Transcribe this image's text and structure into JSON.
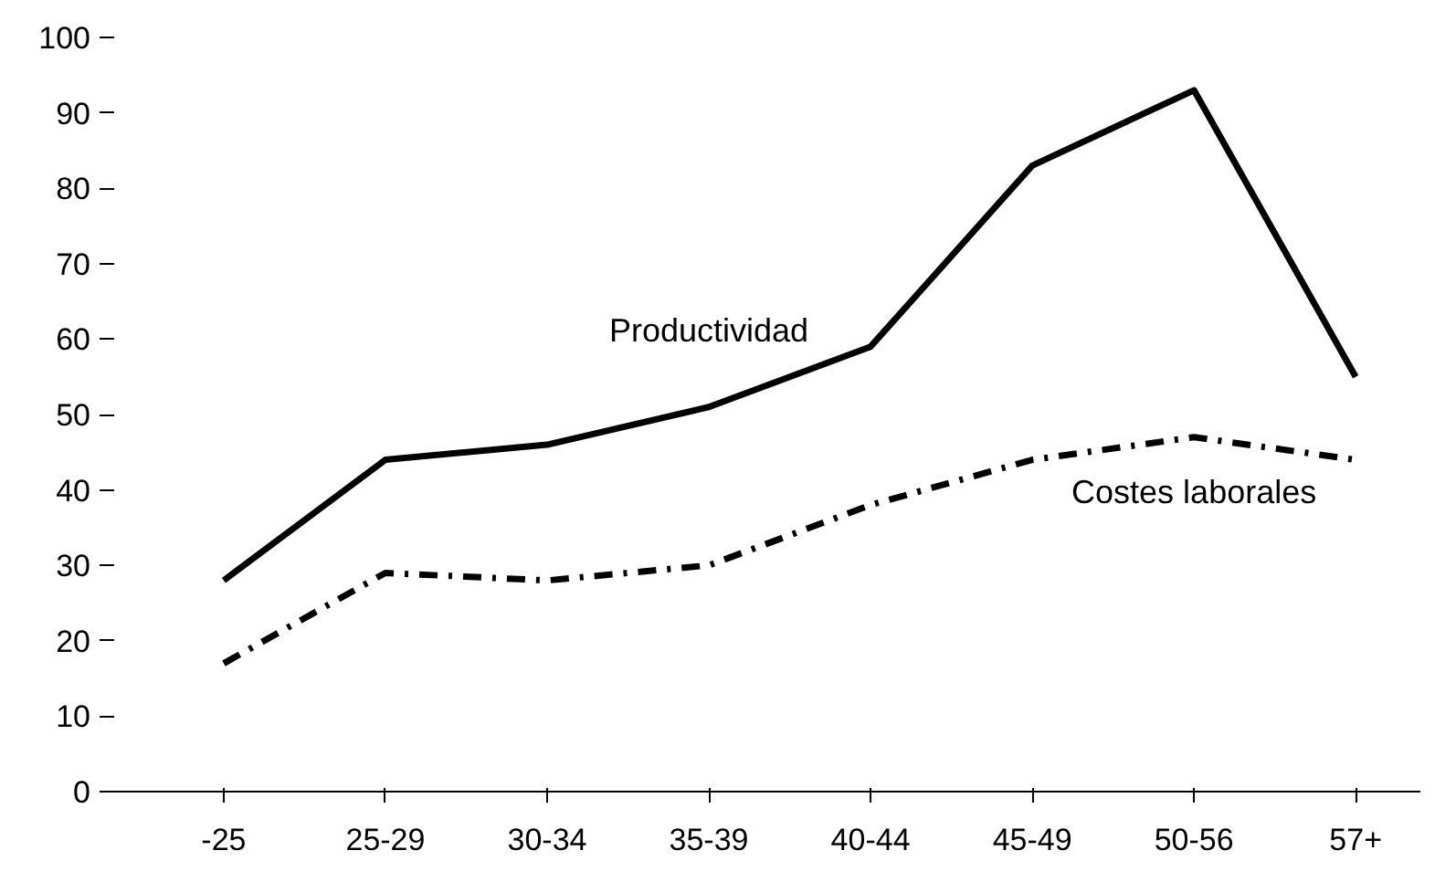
{
  "chart_data": {
    "type": "line",
    "categories": [
      "-25",
      "25-29",
      "30-34",
      "35-39",
      "40-44",
      "45-49",
      "50-56",
      "57+"
    ],
    "series": [
      {
        "name": "Productividad",
        "color": "#000000",
        "line_style": "solid",
        "values": [
          28,
          44,
          46,
          51,
          59,
          83,
          93,
          55
        ]
      },
      {
        "name": "Costes laborales",
        "color": "#000000",
        "line_style": "dashed",
        "values": [
          17,
          29,
          28,
          30,
          38,
          44,
          47,
          44
        ]
      }
    ],
    "ylim": [
      0,
      100
    ],
    "yticks": [
      0,
      10,
      20,
      30,
      40,
      50,
      60,
      70,
      80,
      90,
      100
    ],
    "grid": false,
    "marker": "none"
  }
}
